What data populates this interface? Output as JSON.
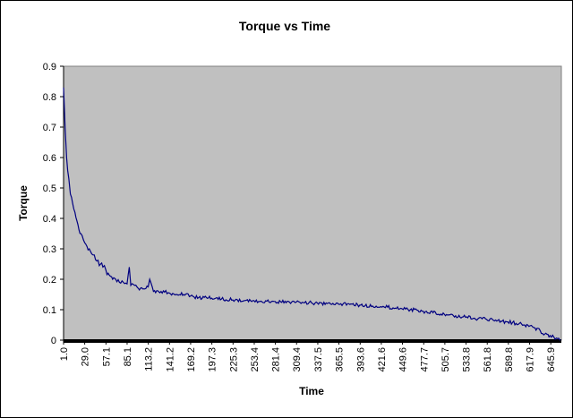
{
  "chart_data": {
    "type": "line",
    "title": "Torque vs Time",
    "xlabel": "Time",
    "ylabel": "Torque",
    "ylim": [
      0,
      0.9
    ],
    "y_ticks": [
      "0",
      "0.1",
      "0.2",
      "0.3",
      "0.4",
      "0.5",
      "0.6",
      "0.7",
      "0.8",
      "0.9"
    ],
    "x_tick_labels": [
      "1.0",
      "29.0",
      "57.1",
      "85.1",
      "113.2",
      "141.2",
      "169.2",
      "197.3",
      "225.3",
      "253.4",
      "281.4",
      "309.4",
      "337.5",
      "365.5",
      "393.6",
      "421.6",
      "449.6",
      "477.7",
      "505.7",
      "533.8",
      "561.8",
      "589.8",
      "617.9",
      "645.9"
    ],
    "xlim": [
      1.0,
      659.9
    ],
    "plot_background": "#c0c0c0",
    "line_color": "#000080",
    "grid": false,
    "series": [
      {
        "name": "Torque",
        "x": [
          1,
          3,
          5,
          8,
          10,
          13,
          16,
          20,
          24,
          29,
          35,
          40,
          45,
          50,
          53,
          55,
          57,
          60,
          63,
          66,
          70,
          75,
          80,
          85,
          88,
          90,
          95,
          100,
          110,
          113,
          115,
          120,
          130,
          141,
          150,
          160,
          169,
          180,
          190,
          197,
          210,
          225,
          240,
          253,
          270,
          281,
          300,
          309,
          320,
          337,
          350,
          365,
          380,
          393,
          400,
          410,
          421,
          430,
          440,
          449,
          460,
          470,
          477,
          490,
          505,
          520,
          533,
          545,
          555,
          561,
          570,
          580,
          589,
          600,
          610,
          617,
          625,
          632,
          638,
          645,
          650,
          655,
          659
        ],
        "values": [
          0.83,
          0.7,
          0.6,
          0.53,
          0.48,
          0.45,
          0.42,
          0.38,
          0.35,
          0.32,
          0.3,
          0.28,
          0.26,
          0.25,
          0.24,
          0.245,
          0.23,
          0.22,
          0.21,
          0.2,
          0.2,
          0.19,
          0.19,
          0.185,
          0.24,
          0.18,
          0.18,
          0.17,
          0.17,
          0.175,
          0.2,
          0.16,
          0.16,
          0.155,
          0.15,
          0.15,
          0.145,
          0.14,
          0.14,
          0.138,
          0.135,
          0.132,
          0.13,
          0.13,
          0.128,
          0.127,
          0.125,
          0.125,
          0.123,
          0.122,
          0.12,
          0.118,
          0.117,
          0.115,
          0.113,
          0.112,
          0.11,
          0.108,
          0.105,
          0.103,
          0.1,
          0.098,
          0.095,
          0.09,
          0.085,
          0.08,
          0.075,
          0.072,
          0.07,
          0.068,
          0.065,
          0.062,
          0.06,
          0.055,
          0.05,
          0.045,
          0.04,
          0.03,
          0.02,
          0.015,
          0.01,
          0.005,
          0.0
        ]
      }
    ]
  }
}
